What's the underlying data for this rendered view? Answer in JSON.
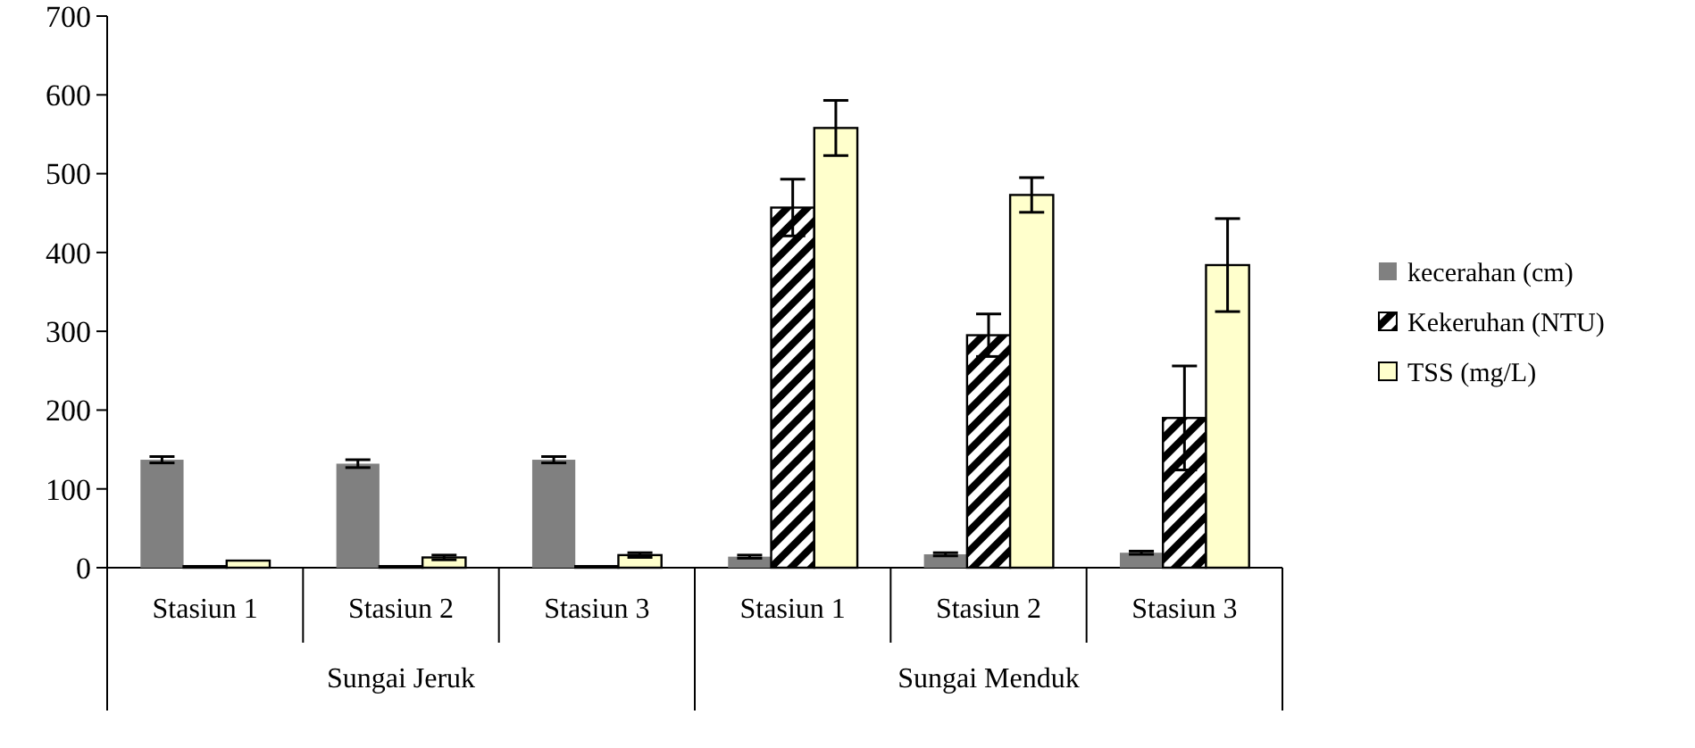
{
  "chart_data": {
    "type": "bar",
    "categories": [
      "Stasiun 1",
      "Stasiun 2",
      "Stasiun 3",
      "Stasiun 1",
      "Stasiun 2",
      "Stasiun 3"
    ],
    "series": [
      {
        "name": "kecerahan (cm)",
        "color": "#808080",
        "values": [
          137,
          132,
          137,
          14,
          17,
          19
        ],
        "errors": [
          4,
          5,
          4,
          2,
          2,
          2
        ]
      },
      {
        "name": "Kekeruhan (NTU)",
        "color": "#000000",
        "values": [
          2,
          2,
          2,
          457,
          295,
          190
        ],
        "errors": [
          null,
          null,
          null,
          36,
          27,
          66
        ]
      },
      {
        "name": "TSS (mg/L)",
        "color": "#ffffcc",
        "values": [
          9,
          13,
          16,
          558,
          473,
          384
        ],
        "errors": [
          null,
          3,
          3,
          35,
          22,
          59
        ]
      }
    ],
    "ylim": [
      0,
      700
    ],
    "yticks": [
      0,
      100,
      200,
      300,
      400,
      500,
      600,
      700
    ],
    "legend": "right",
    "grid": false,
    "annotations": [
      "Sungai Jeruk",
      "Sungai Menduk"
    ]
  }
}
